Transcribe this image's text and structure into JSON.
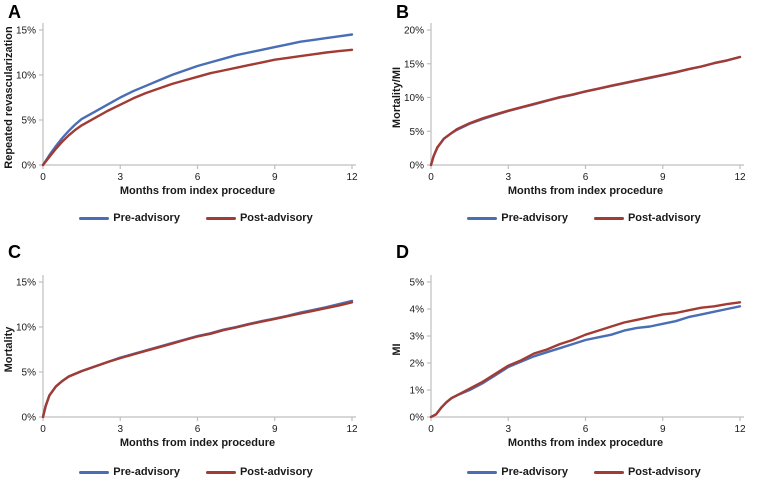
{
  "figure": {
    "background": "#ffffff",
    "axis_color": "#bfbfbf",
    "text_color": "#1a1a1a"
  },
  "chart_data": [
    {
      "type": "line",
      "panel_label": "A",
      "xlabel": "Months from index procedure",
      "ylabel": "Repeated revascularization",
      "xlim": [
        0,
        12
      ],
      "ylim": [
        0,
        15
      ],
      "xticks": [
        0,
        3,
        6,
        9,
        12
      ],
      "xtick_labels": [
        "0",
        "3",
        "6",
        "9",
        "12"
      ],
      "yticks": [
        0,
        5,
        10,
        15
      ],
      "ytick_labels": [
        "0%",
        "5%",
        "10%",
        "15%"
      ],
      "grid": false,
      "legend_position": "bottom",
      "x": [
        0,
        0.25,
        0.5,
        0.75,
        1,
        1.25,
        1.5,
        2,
        2.5,
        3,
        3.5,
        4,
        4.5,
        5,
        5.5,
        6,
        6.5,
        7,
        7.5,
        8,
        8.5,
        9,
        9.5,
        10,
        10.5,
        11,
        11.5,
        12
      ],
      "series": [
        {
          "name": "Pre-advisory",
          "color": "#4A6EB5",
          "values": [
            0,
            1.1,
            2.1,
            3.0,
            3.8,
            4.5,
            5.1,
            5.9,
            6.7,
            7.5,
            8.2,
            8.8,
            9.4,
            10.0,
            10.5,
            11.0,
            11.4,
            11.8,
            12.2,
            12.5,
            12.8,
            13.1,
            13.4,
            13.7,
            13.9,
            14.1,
            14.3,
            14.5
          ]
        },
        {
          "name": "Post-advisory",
          "color": "#A23B34",
          "values": [
            0,
            0.9,
            1.8,
            2.6,
            3.3,
            3.9,
            4.4,
            5.2,
            6.0,
            6.7,
            7.4,
            8.0,
            8.5,
            9.0,
            9.4,
            9.8,
            10.2,
            10.5,
            10.8,
            11.1,
            11.4,
            11.7,
            11.9,
            12.1,
            12.3,
            12.5,
            12.65,
            12.8
          ]
        }
      ]
    },
    {
      "type": "line",
      "panel_label": "B",
      "xlabel": "Months from index procedure",
      "ylabel": "Mortality/MI",
      "xlim": [
        0,
        12
      ],
      "ylim": [
        0,
        20
      ],
      "xticks": [
        0,
        3,
        6,
        9,
        12
      ],
      "xtick_labels": [
        "0",
        "3",
        "6",
        "9",
        "12"
      ],
      "yticks": [
        0,
        5,
        10,
        15,
        20
      ],
      "ytick_labels": [
        "0%",
        "5%",
        "10%",
        "15%",
        "20%"
      ],
      "grid": false,
      "legend_position": "bottom",
      "x": [
        0,
        0.1,
        0.25,
        0.5,
        0.75,
        1,
        1.5,
        2,
        2.5,
        3,
        3.5,
        4,
        4.5,
        5,
        5.5,
        6,
        6.5,
        7,
        7.5,
        8,
        8.5,
        9,
        9.5,
        10,
        10.5,
        11,
        11.5,
        12
      ],
      "series": [
        {
          "name": "Pre-advisory",
          "color": "#4A6EB5",
          "values": [
            0,
            1.3,
            2.6,
            3.9,
            4.6,
            5.2,
            6.1,
            6.8,
            7.4,
            8.0,
            8.5,
            9.0,
            9.5,
            10.0,
            10.4,
            10.9,
            11.3,
            11.7,
            12.1,
            12.5,
            12.9,
            13.3,
            13.7,
            14.2,
            14.6,
            15.1,
            15.5,
            16.0
          ]
        },
        {
          "name": "Post-advisory",
          "color": "#A23B34",
          "values": [
            0,
            1.3,
            2.6,
            3.9,
            4.6,
            5.3,
            6.2,
            6.9,
            7.5,
            8.05,
            8.55,
            9.05,
            9.55,
            10.05,
            10.45,
            10.9,
            11.3,
            11.75,
            12.15,
            12.55,
            12.95,
            13.35,
            13.75,
            14.2,
            14.6,
            15.1,
            15.5,
            16.0
          ]
        }
      ]
    },
    {
      "type": "line",
      "panel_label": "C",
      "xlabel": "Months from index procedure",
      "ylabel": "Mortality",
      "xlim": [
        0,
        12
      ],
      "ylim": [
        0,
        15
      ],
      "xticks": [
        0,
        3,
        6,
        9,
        12
      ],
      "xtick_labels": [
        "0",
        "3",
        "6",
        "9",
        "12"
      ],
      "yticks": [
        0,
        5,
        10,
        15
      ],
      "ytick_labels": [
        "0%",
        "5%",
        "10%",
        "15%"
      ],
      "grid": false,
      "legend_position": "bottom",
      "x": [
        0,
        0.1,
        0.25,
        0.5,
        0.75,
        1,
        1.5,
        2,
        2.5,
        3,
        3.5,
        4,
        4.5,
        5,
        5.5,
        6,
        6.5,
        7,
        7.5,
        8,
        8.5,
        9,
        9.5,
        10,
        10.5,
        11,
        11.5,
        12
      ],
      "series": [
        {
          "name": "Pre-advisory",
          "color": "#4A6EB5",
          "values": [
            0,
            1.2,
            2.4,
            3.4,
            4.0,
            4.5,
            5.1,
            5.6,
            6.1,
            6.6,
            7.0,
            7.4,
            7.8,
            8.2,
            8.6,
            9.0,
            9.3,
            9.7,
            10.0,
            10.35,
            10.65,
            10.95,
            11.25,
            11.6,
            11.9,
            12.2,
            12.55,
            12.9
          ]
        },
        {
          "name": "Post-advisory",
          "color": "#A23B34",
          "values": [
            0,
            1.2,
            2.4,
            3.4,
            4.0,
            4.5,
            5.1,
            5.6,
            6.1,
            6.55,
            6.95,
            7.35,
            7.75,
            8.15,
            8.55,
            8.95,
            9.25,
            9.65,
            9.95,
            10.3,
            10.6,
            10.9,
            11.2,
            11.5,
            11.8,
            12.1,
            12.4,
            12.75
          ]
        }
      ]
    },
    {
      "type": "line",
      "panel_label": "D",
      "xlabel": "Months from index procedure",
      "ylabel": "MI",
      "xlim": [
        0,
        12
      ],
      "ylim": [
        0,
        5
      ],
      "xticks": [
        0,
        3,
        6,
        9,
        12
      ],
      "xtick_labels": [
        "0",
        "3",
        "6",
        "9",
        "12"
      ],
      "yticks": [
        0,
        1,
        2,
        3,
        4,
        5
      ],
      "ytick_labels": [
        "0%",
        "1%",
        "2%",
        "3%",
        "4%",
        "5%"
      ],
      "grid": false,
      "legend_position": "bottom",
      "x": [
        0,
        0.2,
        0.4,
        0.6,
        0.8,
        1,
        1.5,
        2,
        2.5,
        3,
        3.5,
        4,
        4.5,
        5,
        5.5,
        6,
        6.5,
        7,
        7.5,
        8,
        8.5,
        9,
        9.5,
        10,
        10.5,
        11,
        11.5,
        12
      ],
      "series": [
        {
          "name": "Pre-advisory",
          "color": "#4A6EB5",
          "values": [
            0,
            0.1,
            0.35,
            0.55,
            0.7,
            0.8,
            1.0,
            1.25,
            1.55,
            1.85,
            2.05,
            2.25,
            2.4,
            2.55,
            2.7,
            2.85,
            2.95,
            3.05,
            3.2,
            3.3,
            3.35,
            3.45,
            3.55,
            3.7,
            3.8,
            3.9,
            4.0,
            4.1
          ]
        },
        {
          "name": "Post-advisory",
          "color": "#A23B34",
          "values": [
            0,
            0.1,
            0.35,
            0.55,
            0.7,
            0.8,
            1.05,
            1.3,
            1.6,
            1.9,
            2.1,
            2.35,
            2.5,
            2.7,
            2.85,
            3.05,
            3.2,
            3.35,
            3.5,
            3.6,
            3.7,
            3.8,
            3.85,
            3.95,
            4.05,
            4.1,
            4.18,
            4.25
          ]
        }
      ]
    }
  ]
}
